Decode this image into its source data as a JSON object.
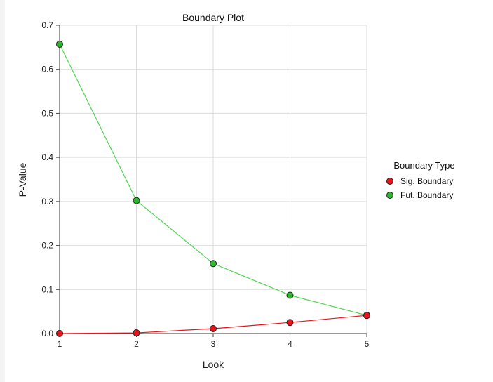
{
  "chart_data": {
    "type": "line",
    "title": "Boundary Plot",
    "xlabel": "Look",
    "ylabel": "P-Value",
    "x": [
      1,
      2,
      3,
      4,
      5
    ],
    "xlim": [
      1,
      5
    ],
    "ylim": [
      0,
      0.7
    ],
    "y_ticks": [
      "0.0",
      "0.1",
      "0.2",
      "0.3",
      "0.4",
      "0.5",
      "0.6",
      "0.7"
    ],
    "x_ticks": [
      "1",
      "2",
      "3",
      "4",
      "5"
    ],
    "grid": true,
    "legend": {
      "title": "Boundary Type",
      "placement": "right"
    },
    "series": [
      {
        "name": "Sig. Boundary",
        "color": "#e8141c",
        "line_color": "#e8141c",
        "values": [
          0.0001,
          0.0015,
          0.0112,
          0.0252,
          0.0412
        ]
      },
      {
        "name": "Fut. Boundary",
        "color": "#2cb82c",
        "line_color": "#52d452",
        "values": [
          0.657,
          0.302,
          0.159,
          0.087,
          0.0412
        ]
      }
    ]
  }
}
